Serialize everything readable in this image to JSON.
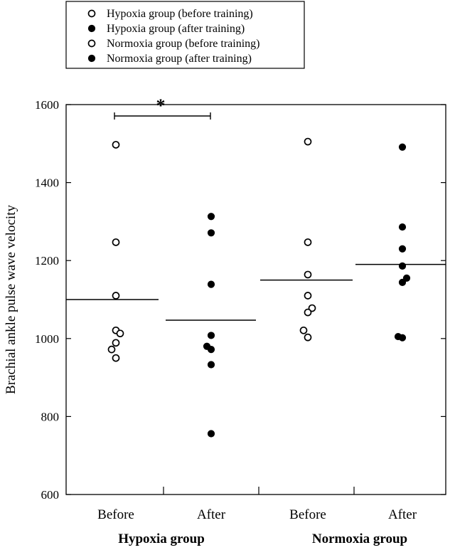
{
  "legend": {
    "entries": [
      {
        "label": "Hypoxia group (before training)",
        "marker": "open-circle"
      },
      {
        "label": "Hypoxia group (after training)",
        "marker": "filled-circle"
      },
      {
        "label": "Normoxia group (before training)",
        "marker": "open-circle"
      },
      {
        "label": "Normoxia group (after training)",
        "marker": "filled-circle"
      }
    ]
  },
  "chart_data": {
    "type": "scatter",
    "title": "",
    "ylabel": "Brachial ankle pulse wave velocity",
    "ylim": [
      600,
      1600
    ],
    "yticks": [
      600,
      800,
      1000,
      1200,
      1400,
      1600
    ],
    "yticklabels": [
      "600",
      "800",
      "1000",
      "1200",
      "1400",
      "1600"
    ],
    "categories": [
      "Before",
      "After",
      "Before",
      "After"
    ],
    "groups": [
      "Hypoxia group",
      "Normoxia group"
    ],
    "grid": false,
    "legend_position": "top-left",
    "significance": {
      "label": "*",
      "between": [
        "Before",
        "After"
      ],
      "group": "Hypoxia group"
    },
    "series": [
      {
        "name": "Hypoxia group (before training)",
        "category_index": 0,
        "marker": "open-circle",
        "values": [
          1497,
          1247,
          1110,
          1021,
          1013,
          989,
          972,
          950
        ],
        "offsets": [
          0,
          0,
          0,
          0,
          0.5,
          0,
          -0.5,
          0
        ],
        "mean": 1100
      },
      {
        "name": "Hypoxia group (after training)",
        "category_index": 1,
        "marker": "filled-circle",
        "values": [
          1313,
          1271,
          1139,
          1008,
          980,
          972,
          933,
          756
        ],
        "offsets": [
          0,
          0,
          0,
          0,
          -0.5,
          0,
          0,
          0
        ],
        "mean": 1047
      },
      {
        "name": "Normoxia group (before training)",
        "category_index": 2,
        "marker": "open-circle",
        "values": [
          1505,
          1247,
          1164,
          1110,
          1078,
          1067,
          1021,
          1003
        ],
        "offsets": [
          0,
          0,
          0,
          0,
          0.5,
          0,
          -0.5,
          0
        ],
        "mean": 1150
      },
      {
        "name": "Normoxia group (after training)",
        "category_index": 3,
        "marker": "filled-circle",
        "values": [
          1491,
          1286,
          1230,
          1186,
          1155,
          1144,
          1005,
          1002
        ],
        "offsets": [
          0,
          0,
          0,
          0,
          0.5,
          0,
          -0.5,
          0
        ],
        "mean": 1190
      }
    ]
  }
}
